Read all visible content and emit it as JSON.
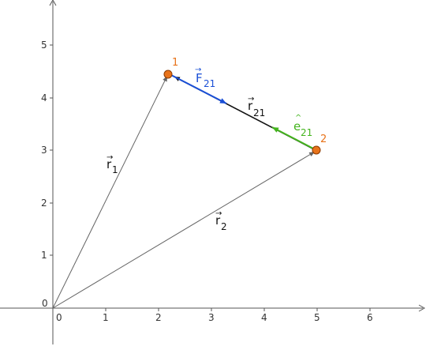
{
  "axes": {
    "x_ticks": [
      "0",
      "1",
      "2",
      "3",
      "4",
      "5",
      "6"
    ],
    "y_ticks": [
      "1",
      "2",
      "3",
      "4",
      "5"
    ],
    "origin_label": "0"
  },
  "points": [
    {
      "label": "1",
      "x": 2.2,
      "y": 4.45
    },
    {
      "label": "2",
      "x": 5.0,
      "y": 3.0
    }
  ],
  "vectors": {
    "r1": {
      "main": "r",
      "sub": "1",
      "accent": "→"
    },
    "r2": {
      "main": "r",
      "sub": "2",
      "accent": "→"
    },
    "r21": {
      "main": "r",
      "sub": "21",
      "accent": "→"
    },
    "F21": {
      "main": "F",
      "sub": "21",
      "accent": "→"
    },
    "e21": {
      "main": "e",
      "sub": "21",
      "accent": "^"
    }
  },
  "colors": {
    "axis": "#555555",
    "gray_vector": "#666666",
    "black_vector": "#111111",
    "blue": "#1a4fd6",
    "green": "#44b41e",
    "point_fill": "#e8731a",
    "point_label": "#e8731a"
  }
}
